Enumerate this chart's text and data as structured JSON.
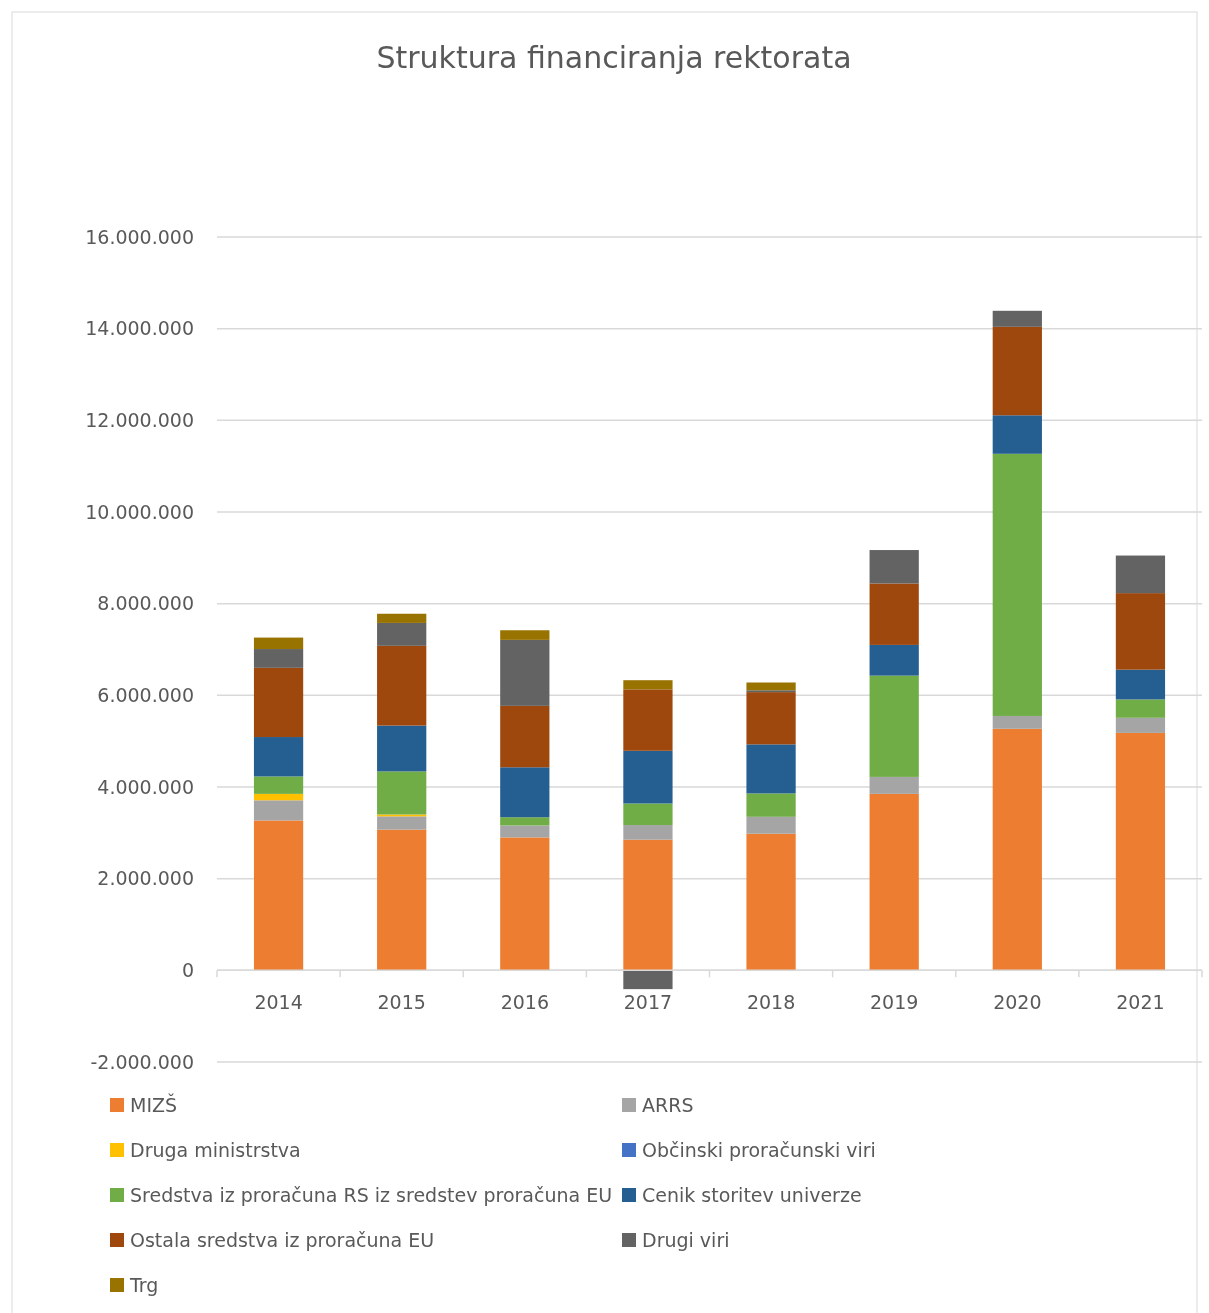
{
  "chart_data": {
    "type": "bar",
    "title": "Struktura financiranja rektorata",
    "stacked": true,
    "grid": "y",
    "legend": "bottom",
    "categories": [
      "2014",
      "2015",
      "2016",
      "2017",
      "2018",
      "2019",
      "2020",
      "2021"
    ],
    "ylim": [
      -2000000,
      16000000
    ],
    "yticks": [
      {
        "value": -2000000,
        "label": "-2.000.000"
      },
      0,
      {
        "value": 2000000,
        "label": "2.000.000"
      },
      {
        "value": 4000000,
        "label": "4.000.000"
      },
      {
        "value": 6000000,
        "label": "6.000.000"
      },
      {
        "value": 8000000,
        "label": "8.000.000"
      },
      {
        "value": 10000000,
        "label": "10.000.000"
      },
      {
        "value": 12000000,
        "label": "12.000.000"
      },
      {
        "value": 14000000,
        "label": "14.000.000"
      },
      {
        "value": 16000000,
        "label": "16.000.000"
      }
    ],
    "series": [
      {
        "name": "MIZŠ",
        "color": "#ed7d31",
        "values": [
          3270000,
          3070000,
          2900000,
          2850000,
          2980000,
          3850000,
          5270000,
          5180000
        ]
      },
      {
        "name": "ARRS",
        "color": "#a5a5a5",
        "values": [
          440000,
          290000,
          260000,
          320000,
          370000,
          370000,
          280000,
          330000
        ]
      },
      {
        "name": "Druga ministrstva",
        "color": "#ffc000",
        "values": [
          140000,
          40000,
          0,
          0,
          0,
          0,
          0,
          0
        ]
      },
      {
        "name": "Občinski proračunski viri",
        "color": "#4472c4",
        "values": [
          0,
          0,
          0,
          0,
          0,
          0,
          0,
          0
        ]
      },
      {
        "name": "Sredstva iz proračuna RS iz sredstev proračuna EU",
        "color": "#70ad47",
        "values": [
          380000,
          940000,
          180000,
          470000,
          510000,
          2210000,
          5720000,
          400000
        ]
      },
      {
        "name": "Cenik storitev univerze",
        "color": "#255e91",
        "values": [
          860000,
          1000000,
          1090000,
          1150000,
          1070000,
          670000,
          840000,
          650000
        ]
      },
      {
        "name": "Ostala sredstva iz proračuna EU",
        "color": "#9e480e",
        "values": [
          1510000,
          1740000,
          1340000,
          1340000,
          1140000,
          1340000,
          1930000,
          1670000
        ]
      },
      {
        "name": "Drugi viri",
        "color": "#636363",
        "values": [
          410000,
          500000,
          1440000,
          -410000,
          40000,
          730000,
          350000,
          820000
        ]
      },
      {
        "name": "Trg",
        "color": "#997300",
        "values": [
          250000,
          200000,
          210000,
          200000,
          170000,
          0,
          0,
          0
        ]
      }
    ]
  }
}
